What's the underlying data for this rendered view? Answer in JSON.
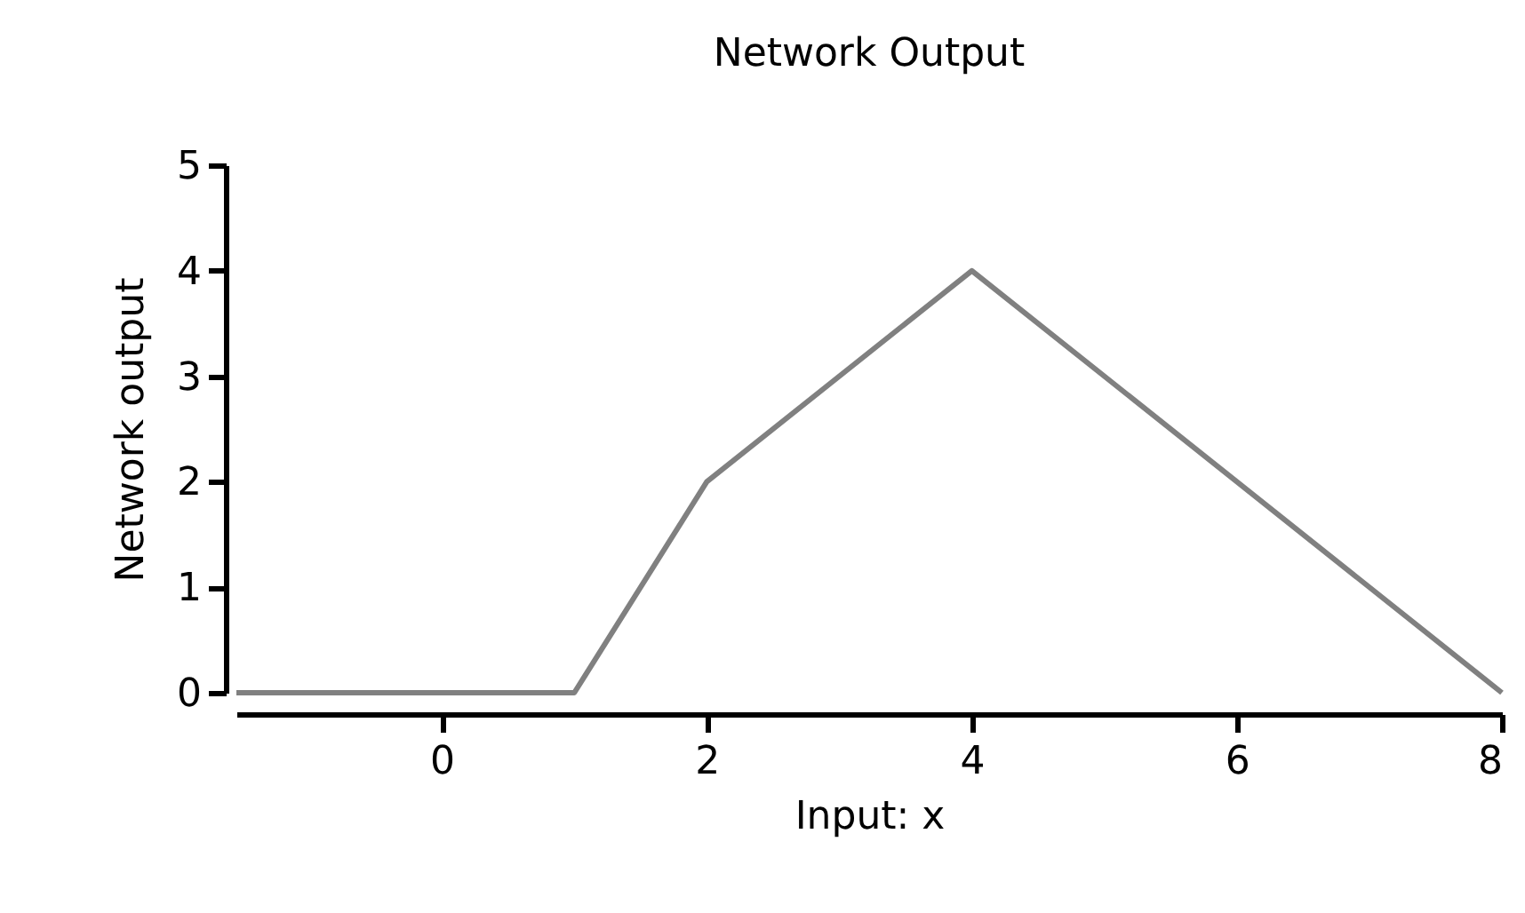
{
  "chart_data": {
    "type": "line",
    "title": "Network Output",
    "xlabel": "Input: x",
    "ylabel": "Network output",
    "x": [
      -1.55,
      1,
      2,
      4,
      8
    ],
    "series": [
      {
        "color": "#808080",
        "values": [
          0,
          0,
          2,
          4,
          0
        ]
      }
    ],
    "xlim": [
      -1.55,
      8
    ],
    "xticks": [
      0,
      2,
      4,
      6,
      8
    ],
    "ylim": [
      0,
      5
    ],
    "yticks": [
      0,
      1,
      2,
      3,
      4,
      5
    ],
    "grid": false,
    "legend": false,
    "marker": "none",
    "line_style": "solid"
  }
}
